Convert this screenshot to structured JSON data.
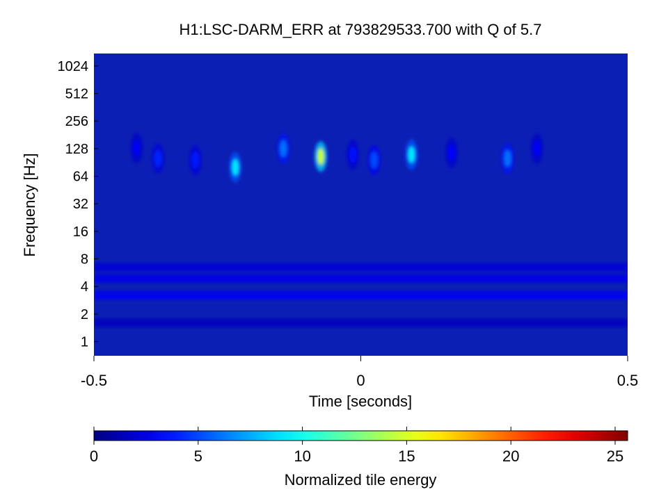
{
  "chart_data": {
    "type": "heatmap",
    "title": "H1:LSC-DARM_ERR at 793829533.700 with Q of 5.7",
    "xlabel": "Time [seconds]",
    "ylabel": "Frequency [Hz]",
    "xlim": [
      -0.5,
      0.5
    ],
    "x_ticks": [
      "-0.5",
      "0",
      "0.5"
    ],
    "x_tick_values": [
      -0.5,
      0,
      0.5
    ],
    "yscale": "log2",
    "ylim": [
      0.7,
      1400
    ],
    "y_ticks": [
      "1",
      "2",
      "4",
      "8",
      "16",
      "32",
      "64",
      "128",
      "256",
      "512",
      "1024"
    ],
    "y_tick_values": [
      1,
      2,
      4,
      8,
      16,
      32,
      64,
      128,
      256,
      512,
      1024
    ],
    "grid": false,
    "colormap": "jet",
    "background_color": "#0b1fb4",
    "colorbar": {
      "label": "Normalized tile energy",
      "range": [
        0,
        25.6
      ],
      "ticks": [
        "0",
        "5",
        "10",
        "15",
        "20",
        "25"
      ],
      "tick_values": [
        0,
        5,
        10,
        15,
        20,
        25
      ],
      "placement": "bottom"
    },
    "bands": [
      {
        "f": 3.2,
        "energy": 3.0
      },
      {
        "f": 4.9,
        "energy": 2.6
      },
      {
        "f": 6.5,
        "energy": 2.2
      },
      {
        "f": 1.6,
        "energy": 1.6
      }
    ],
    "events": [
      {
        "t": -0.235,
        "f": 80,
        "energy": 9.0
      },
      {
        "t": -0.075,
        "f": 105,
        "energy": 14.5
      },
      {
        "t": 0.095,
        "f": 110,
        "energy": 9.0
      },
      {
        "t": -0.145,
        "f": 128,
        "energy": 6.0
      },
      {
        "t": 0.025,
        "f": 96,
        "energy": 5.0
      },
      {
        "t": 0.275,
        "f": 100,
        "energy": 6.0
      },
      {
        "t": -0.38,
        "f": 100,
        "energy": 4.0
      },
      {
        "t": -0.31,
        "f": 96,
        "energy": 3.8
      },
      {
        "t": -0.015,
        "f": 110,
        "energy": 3.5
      },
      {
        "t": 0.17,
        "f": 115,
        "energy": 3.2
      },
      {
        "t": 0.33,
        "f": 128,
        "energy": 3.0
      },
      {
        "t": -0.42,
        "f": 130,
        "energy": 3.0
      }
    ]
  }
}
